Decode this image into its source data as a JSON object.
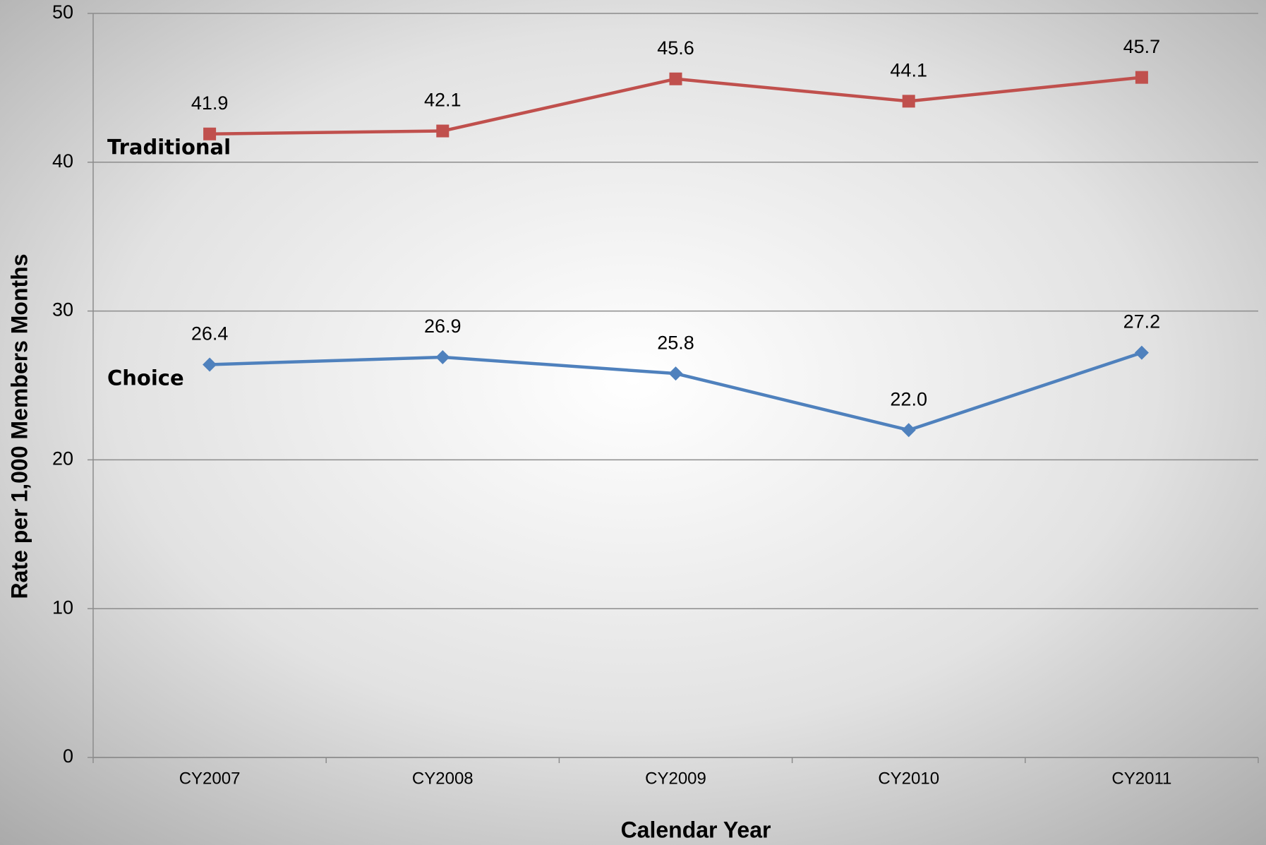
{
  "chart_data": {
    "type": "line",
    "x_label": "Calendar Year",
    "y_label": "Rate per 1,000 Members Months",
    "categories": [
      "CY2007",
      "CY2008",
      "CY2009",
      "CY2010",
      "CY2011"
    ],
    "series": [
      {
        "name": "Traditional",
        "color": "#c0504d",
        "marker": "square",
        "values": [
          41.9,
          42.1,
          45.6,
          44.1,
          45.7
        ]
      },
      {
        "name": "Choice",
        "color": "#4f81bd",
        "marker": "diamond",
        "values": [
          26.4,
          26.9,
          25.8,
          22.0,
          27.2
        ],
        "value_labels": [
          "26.4",
          "26.9",
          "25.8",
          "22.0",
          "27.2"
        ]
      }
    ],
    "ylim": [
      0,
      50
    ],
    "yticks": [
      0,
      10,
      20,
      30,
      40,
      50
    ],
    "grid": true
  }
}
